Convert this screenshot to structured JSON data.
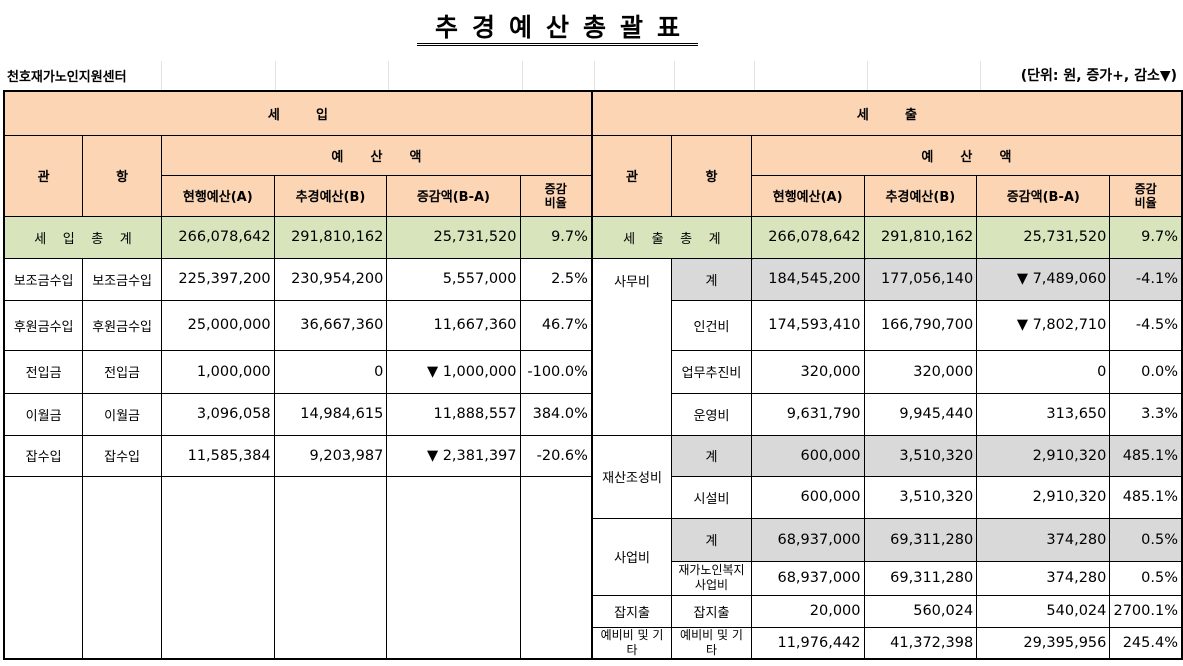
{
  "title": "추경예산총괄표",
  "org": "천호재가노인지원센터",
  "unit": "(단위: 원, 증가+, 감소▼)",
  "headers": {
    "income": "세        입",
    "expense": "세        출",
    "gwan": "관",
    "hang": "항",
    "amount": "예      산      액",
    "current": "현행예산(A)",
    "revised": "추경예산(B)",
    "diff": "증감액(B-A)",
    "rate": "증감\n비율"
  },
  "income_total": {
    "label": "세    입    총    계",
    "a": "266,078,642",
    "b": "291,810,162",
    "d": "25,731,520",
    "r": "9.7%"
  },
  "expense_total": {
    "label": "세    출    총    계",
    "a": "266,078,642",
    "b": "291,810,162",
    "d": "25,731,520",
    "r": "9.7%"
  },
  "income_rows": [
    {
      "gwan": "보조금수입",
      "hang": "보조금수입",
      "a": "225,397,200",
      "b": "230,954,200",
      "d": "5,557,000",
      "r": "2.5%"
    },
    {
      "gwan": "후원금수입",
      "hang": "후원금수입",
      "a": "25,000,000",
      "b": "36,667,360",
      "d": "11,667,360",
      "r": "46.7%"
    },
    {
      "gwan": "전입금",
      "hang": "전입금",
      "a": "1,000,000",
      "b": "0",
      "d": "▼ 1,000,000",
      "r": "-100.0%"
    },
    {
      "gwan": "이월금",
      "hang": "이월금",
      "a": "3,096,058",
      "b": "14,984,615",
      "d": "11,888,557",
      "r": "384.0%"
    },
    {
      "gwan": "잡수입",
      "hang": "잡수입",
      "a": "11,585,384",
      "b": "9,203,987",
      "d": "▼ 2,381,397",
      "r": "-20.6%"
    }
  ],
  "expense_groups": {
    "g1": "사무비",
    "g2": "재산조성비",
    "g3": "사업비",
    "g4": "잡지출",
    "g5": "예비비 및 기타"
  },
  "expense_rows": [
    {
      "hang": "계",
      "a": "184,545,200",
      "b": "177,056,140",
      "d": "▼ 7,489,060",
      "r": "-4.1%"
    },
    {
      "hang": "인건비",
      "a": "174,593,410",
      "b": "166,790,700",
      "d": "▼ 7,802,710",
      "r": "-4.5%"
    },
    {
      "hang": "업무추진비",
      "a": "320,000",
      "b": "320,000",
      "d": "0",
      "r": "0.0%"
    },
    {
      "hang": "운영비",
      "a": "9,631,790",
      "b": "9,945,440",
      "d": "313,650",
      "r": "3.3%"
    },
    {
      "hang": "계",
      "a": "600,000",
      "b": "3,510,320",
      "d": "2,910,320",
      "r": "485.1%"
    },
    {
      "hang": "시설비",
      "a": "600,000",
      "b": "3,510,320",
      "d": "2,910,320",
      "r": "485.1%"
    },
    {
      "hang": "계",
      "a": "68,937,000",
      "b": "69,311,280",
      "d": "374,280",
      "r": "0.5%"
    },
    {
      "hang": "재가노인복지 사업비",
      "a": "68,937,000",
      "b": "69,311,280",
      "d": "374,280",
      "r": "0.5%"
    },
    {
      "hang": "잡지출",
      "a": "20,000",
      "b": "560,024",
      "d": "540,024",
      "r": "2700.1%"
    },
    {
      "hang": "예비비 및 기타",
      "a": "11,976,442",
      "b": "41,372,398",
      "d": "29,395,956",
      "r": "245.4%"
    }
  ]
}
